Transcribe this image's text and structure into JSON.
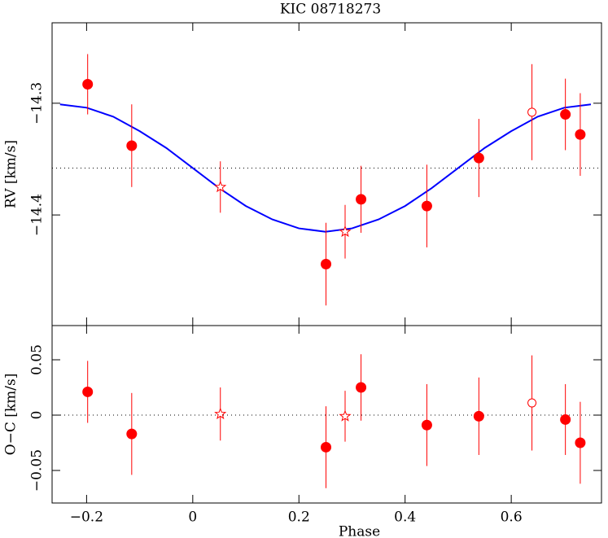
{
  "chart_data": [
    {
      "type": "scatter",
      "title": "KIC 08718273",
      "ylabel": "RV [km/s]",
      "xlim": [
        -0.265,
        0.77
      ],
      "ylim": [
        -14.499,
        -14.228
      ],
      "yticks": [
        {
          "value": -14.3,
          "label": "−14.3"
        },
        {
          "value": -14.4,
          "label": "−14.4"
        }
      ],
      "reference_line": -14.358,
      "color": "#ff0000",
      "x": [
        -0.198,
        -0.115,
        0.052,
        0.251,
        0.287,
        0.317,
        0.441,
        0.539,
        0.639,
        0.702,
        0.73
      ],
      "values": [
        -14.283,
        -14.338,
        -14.375,
        -14.444,
        -14.415,
        -14.386,
        -14.392,
        -14.349,
        -14.308,
        -14.31,
        -14.328
      ],
      "errors": [
        0.027,
        0.037,
        0.023,
        0.037,
        0.024,
        0.03,
        0.037,
        0.035,
        0.043,
        0.032,
        0.037
      ],
      "markers": [
        "filled",
        "filled",
        "star",
        "filled",
        "star",
        "filled",
        "filled",
        "filled",
        "open",
        "filled",
        "filled"
      ],
      "model": {
        "color": "#0000ff",
        "x": [
          -0.25,
          -0.2,
          -0.15,
          -0.1,
          -0.05,
          0,
          0.05,
          0.1,
          0.15,
          0.2,
          0.25,
          0.3,
          0.35,
          0.4,
          0.45,
          0.5,
          0.55,
          0.6,
          0.65,
          0.7,
          0.75
        ],
        "values": [
          -14.301,
          -14.304,
          -14.312,
          -14.325,
          -14.34,
          -14.358,
          -14.376,
          -14.392,
          -14.404,
          -14.412,
          -14.415,
          -14.412,
          -14.404,
          -14.392,
          -14.376,
          -14.358,
          -14.34,
          -14.325,
          -14.312,
          -14.304,
          -14.301
        ]
      }
    },
    {
      "type": "scatter",
      "ylabel": "O−C [km/s]",
      "xlabel": "Phase",
      "xlim": [
        -0.265,
        0.77
      ],
      "ylim": [
        -0.0794,
        0.0809
      ],
      "xticks": [
        {
          "value": -0.2,
          "label": "−0.2"
        },
        0,
        0.2,
        0.4,
        0.6
      ],
      "yticks": [
        0.05,
        0,
        {
          "value": -0.05,
          "label": "−0.05"
        }
      ],
      "reference_line": 0,
      "color": "#ff0000",
      "x": [
        -0.198,
        -0.115,
        0.052,
        0.251,
        0.287,
        0.317,
        0.441,
        0.539,
        0.639,
        0.702,
        0.73
      ],
      "values": [
        0.021,
        -0.017,
        0.001,
        -0.029,
        -0.001,
        0.025,
        -0.009,
        -0.001,
        0.011,
        -0.004,
        -0.025
      ],
      "errors": [
        0.028,
        0.037,
        0.024,
        0.037,
        0.023,
        0.03,
        0.037,
        0.035,
        0.043,
        0.032,
        0.037
      ],
      "markers": [
        "filled",
        "filled",
        "star",
        "filled",
        "star",
        "filled",
        "filled",
        "filled",
        "open",
        "filled",
        "filled"
      ]
    }
  ]
}
